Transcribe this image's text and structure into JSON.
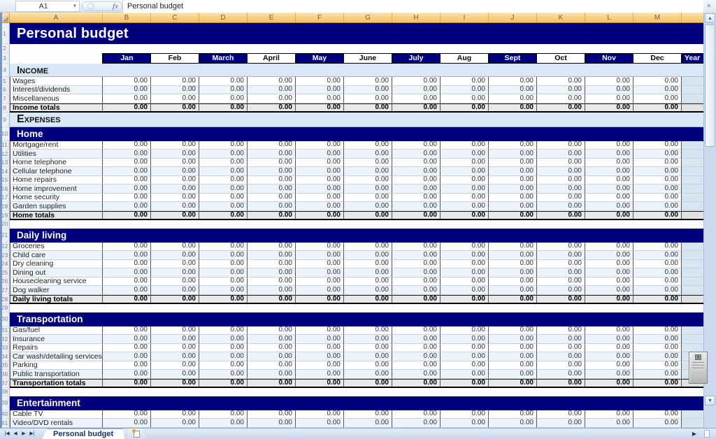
{
  "formula_bar": {
    "cell_reference": "A1",
    "fx_label": "fx",
    "formula_text": "Personal budget"
  },
  "column_headers": [
    "A",
    "B",
    "C",
    "D",
    "E",
    "F",
    "G",
    "H",
    "I",
    "J",
    "K",
    "L",
    "M"
  ],
  "colors": {
    "navy": "#00007E",
    "header_tan": "#F4C164",
    "section_light_blue": "#D8E8F6",
    "totals_gray": "#E8E8E8",
    "alt_row_blue": "#EDF3FA",
    "year_col_blue": "#D7E5F3"
  },
  "sheet": {
    "title": "Personal budget",
    "month_columns": [
      "Jan",
      "Feb",
      "March",
      "April",
      "May",
      "June",
      "July",
      "Aug",
      "Sept",
      "Oct",
      "Nov",
      "Dec"
    ],
    "year_column_label": "Year",
    "rows": [
      {
        "num": 1,
        "type": "title",
        "label": "Personal budget"
      },
      {
        "num": 2,
        "type": "spacer"
      },
      {
        "num": 3,
        "type": "months"
      },
      {
        "num": 4,
        "type": "section-light",
        "label": "Income"
      },
      {
        "num": 5,
        "type": "item",
        "label": "Wages",
        "values": [
          "0.00",
          "0.00",
          "0.00",
          "0.00",
          "0.00",
          "0.00",
          "0.00",
          "0.00",
          "0.00",
          "0.00",
          "0.00",
          "0.00"
        ]
      },
      {
        "num": 6,
        "type": "item",
        "label": "Interest/dividends",
        "values": [
          "0.00",
          "0.00",
          "0.00",
          "0.00",
          "0.00",
          "0.00",
          "0.00",
          "0.00",
          "0.00",
          "0.00",
          "0.00",
          "0.00"
        ]
      },
      {
        "num": 7,
        "type": "item",
        "label": "Miscellaneous",
        "values": [
          "0.00",
          "0.00",
          "0.00",
          "0.00",
          "0.00",
          "0.00",
          "0.00",
          "0.00",
          "0.00",
          "0.00",
          "0.00",
          "0.00"
        ]
      },
      {
        "num": 8,
        "type": "total",
        "label": "Income totals",
        "values": [
          "0.00",
          "0.00",
          "0.00",
          "0.00",
          "0.00",
          "0.00",
          "0.00",
          "0.00",
          "0.00",
          "0.00",
          "0.00",
          "0.00"
        ]
      },
      {
        "num": 9,
        "type": "expenses",
        "label": "Expenses"
      },
      {
        "num": 10,
        "type": "section-dark",
        "label": "Home"
      },
      {
        "num": 11,
        "type": "item",
        "label": "Mortgage/rent",
        "values": [
          "0.00",
          "0.00",
          "0.00",
          "0.00",
          "0.00",
          "0.00",
          "0.00",
          "0.00",
          "0.00",
          "0.00",
          "0.00",
          "0.00"
        ]
      },
      {
        "num": 12,
        "type": "item",
        "label": "Utilities",
        "values": [
          "0.00",
          "0.00",
          "0.00",
          "0.00",
          "0.00",
          "0.00",
          "0.00",
          "0.00",
          "0.00",
          "0.00",
          "0.00",
          "0.00"
        ]
      },
      {
        "num": 13,
        "type": "item",
        "label": "Home telephone",
        "values": [
          "0.00",
          "0.00",
          "0.00",
          "0.00",
          "0.00",
          "0.00",
          "0.00",
          "0.00",
          "0.00",
          "0.00",
          "0.00",
          "0.00"
        ]
      },
      {
        "num": 14,
        "type": "item",
        "label": "Cellular telephone",
        "values": [
          "0.00",
          "0.00",
          "0.00",
          "0.00",
          "0.00",
          "0.00",
          "0.00",
          "0.00",
          "0.00",
          "0.00",
          "0.00",
          "0.00"
        ]
      },
      {
        "num": 15,
        "type": "item",
        "label": "Home repairs",
        "values": [
          "0.00",
          "0.00",
          "0.00",
          "0.00",
          "0.00",
          "0.00",
          "0.00",
          "0.00",
          "0.00",
          "0.00",
          "0.00",
          "0.00"
        ]
      },
      {
        "num": 16,
        "type": "item",
        "label": "Home improvement",
        "values": [
          "0.00",
          "0.00",
          "0.00",
          "0.00",
          "0.00",
          "0.00",
          "0.00",
          "0.00",
          "0.00",
          "0.00",
          "0.00",
          "0.00"
        ]
      },
      {
        "num": 17,
        "type": "item",
        "label": "Home security",
        "values": [
          "0.00",
          "0.00",
          "0.00",
          "0.00",
          "0.00",
          "0.00",
          "0.00",
          "0.00",
          "0.00",
          "0.00",
          "0.00",
          "0.00"
        ]
      },
      {
        "num": 18,
        "type": "item",
        "label": "Garden supplies",
        "values": [
          "0.00",
          "0.00",
          "0.00",
          "0.00",
          "0.00",
          "0.00",
          "0.00",
          "0.00",
          "0.00",
          "0.00",
          "0.00",
          "0.00"
        ]
      },
      {
        "num": 19,
        "type": "total",
        "label": "Home totals",
        "values": [
          "0.00",
          "0.00",
          "0.00",
          "0.00",
          "0.00",
          "0.00",
          "0.00",
          "0.00",
          "0.00",
          "0.00",
          "0.00",
          "0.00"
        ]
      },
      {
        "num": 20,
        "type": "blank"
      },
      {
        "num": 21,
        "type": "section-dark",
        "label": "Daily living"
      },
      {
        "num": 22,
        "type": "item",
        "label": "Groceries",
        "values": [
          "0.00",
          "0.00",
          "0.00",
          "0.00",
          "0.00",
          "0.00",
          "0.00",
          "0.00",
          "0.00",
          "0.00",
          "0.00",
          "0.00"
        ]
      },
      {
        "num": 23,
        "type": "item",
        "label": "Child care",
        "values": [
          "0.00",
          "0.00",
          "0.00",
          "0.00",
          "0.00",
          "0.00",
          "0.00",
          "0.00",
          "0.00",
          "0.00",
          "0.00",
          "0.00"
        ]
      },
      {
        "num": 24,
        "type": "item",
        "label": "Dry cleaning",
        "values": [
          "0.00",
          "0.00",
          "0.00",
          "0.00",
          "0.00",
          "0.00",
          "0.00",
          "0.00",
          "0.00",
          "0.00",
          "0.00",
          "0.00"
        ]
      },
      {
        "num": 25,
        "type": "item",
        "label": "Dining out",
        "values": [
          "0.00",
          "0.00",
          "0.00",
          "0.00",
          "0.00",
          "0.00",
          "0.00",
          "0.00",
          "0.00",
          "0.00",
          "0.00",
          "0.00"
        ]
      },
      {
        "num": 26,
        "type": "item",
        "label": "Housecleaning service",
        "values": [
          "0.00",
          "0.00",
          "0.00",
          "0.00",
          "0.00",
          "0.00",
          "0.00",
          "0.00",
          "0.00",
          "0.00",
          "0.00",
          "0.00"
        ]
      },
      {
        "num": 27,
        "type": "item",
        "label": "Dog walker",
        "values": [
          "0.00",
          "0.00",
          "0.00",
          "0.00",
          "0.00",
          "0.00",
          "0.00",
          "0.00",
          "0.00",
          "0.00",
          "0.00",
          "0.00"
        ]
      },
      {
        "num": 28,
        "type": "total",
        "label": "Daily living totals",
        "values": [
          "0.00",
          "0.00",
          "0.00",
          "0.00",
          "0.00",
          "0.00",
          "0.00",
          "0.00",
          "0.00",
          "0.00",
          "0.00",
          "0.00"
        ]
      },
      {
        "num": 29,
        "type": "blank"
      },
      {
        "num": 30,
        "type": "section-dark",
        "label": "Transportation"
      },
      {
        "num": 31,
        "type": "item",
        "label": "Gas/fuel",
        "values": [
          "0.00",
          "0.00",
          "0.00",
          "0.00",
          "0.00",
          "0.00",
          "0.00",
          "0.00",
          "0.00",
          "0.00",
          "0.00",
          "0.00"
        ]
      },
      {
        "num": 32,
        "type": "item",
        "label": "Insurance",
        "values": [
          "0.00",
          "0.00",
          "0.00",
          "0.00",
          "0.00",
          "0.00",
          "0.00",
          "0.00",
          "0.00",
          "0.00",
          "0.00",
          "0.00"
        ]
      },
      {
        "num": 33,
        "type": "item",
        "label": "Repairs",
        "values": [
          "0.00",
          "0.00",
          "0.00",
          "0.00",
          "0.00",
          "0.00",
          "0.00",
          "0.00",
          "0.00",
          "0.00",
          "0.00",
          "0.00"
        ]
      },
      {
        "num": 34,
        "type": "item",
        "label": "Car wash/detailing services",
        "values": [
          "0.00",
          "0.00",
          "0.00",
          "0.00",
          "0.00",
          "0.00",
          "0.00",
          "0.00",
          "0.00",
          "0.00",
          "0.00",
          "0.00"
        ]
      },
      {
        "num": 35,
        "type": "item",
        "label": "Parking",
        "values": [
          "0.00",
          "0.00",
          "0.00",
          "0.00",
          "0.00",
          "0.00",
          "0.00",
          "0.00",
          "0.00",
          "0.00",
          "0.00",
          "0.00"
        ]
      },
      {
        "num": 36,
        "type": "item",
        "label": "Public transportation",
        "values": [
          "0.00",
          "0.00",
          "0.00",
          "0.00",
          "0.00",
          "0.00",
          "0.00",
          "0.00",
          "0.00",
          "0.00",
          "0.00",
          "0.00"
        ]
      },
      {
        "num": 37,
        "type": "total",
        "label": "Transportation totals",
        "values": [
          "0.00",
          "0.00",
          "0.00",
          "0.00",
          "0.00",
          "0.00",
          "0.00",
          "0.00",
          "0.00",
          "0.00",
          "0.00",
          "0.00"
        ]
      },
      {
        "num": 38,
        "type": "blank"
      },
      {
        "num": 39,
        "type": "section-dark",
        "label": "Entertainment"
      },
      {
        "num": 40,
        "type": "item",
        "label": "Cable TV",
        "values": [
          "0.00",
          "0.00",
          "0.00",
          "0.00",
          "0.00",
          "0.00",
          "0.00",
          "0.00",
          "0.00",
          "0.00",
          "0.00",
          "0.00"
        ]
      },
      {
        "num": 41,
        "type": "item",
        "label": "Video/DVD rentals",
        "values": [
          "0.00",
          "0.00",
          "0.00",
          "0.00",
          "0.00",
          "0.00",
          "0.00",
          "0.00",
          "0.00",
          "0.00",
          "0.00",
          "0.00"
        ]
      }
    ]
  },
  "tab_bar": {
    "nav_first": "|◀",
    "nav_prev": "◀",
    "nav_next": "▶",
    "nav_last": "▶|",
    "active_tab": "Personal budget"
  },
  "scrollbar": {
    "up_arrow": "▲",
    "down_arrow": "▼",
    "chevron": "»",
    "right_arrow": "▶"
  }
}
